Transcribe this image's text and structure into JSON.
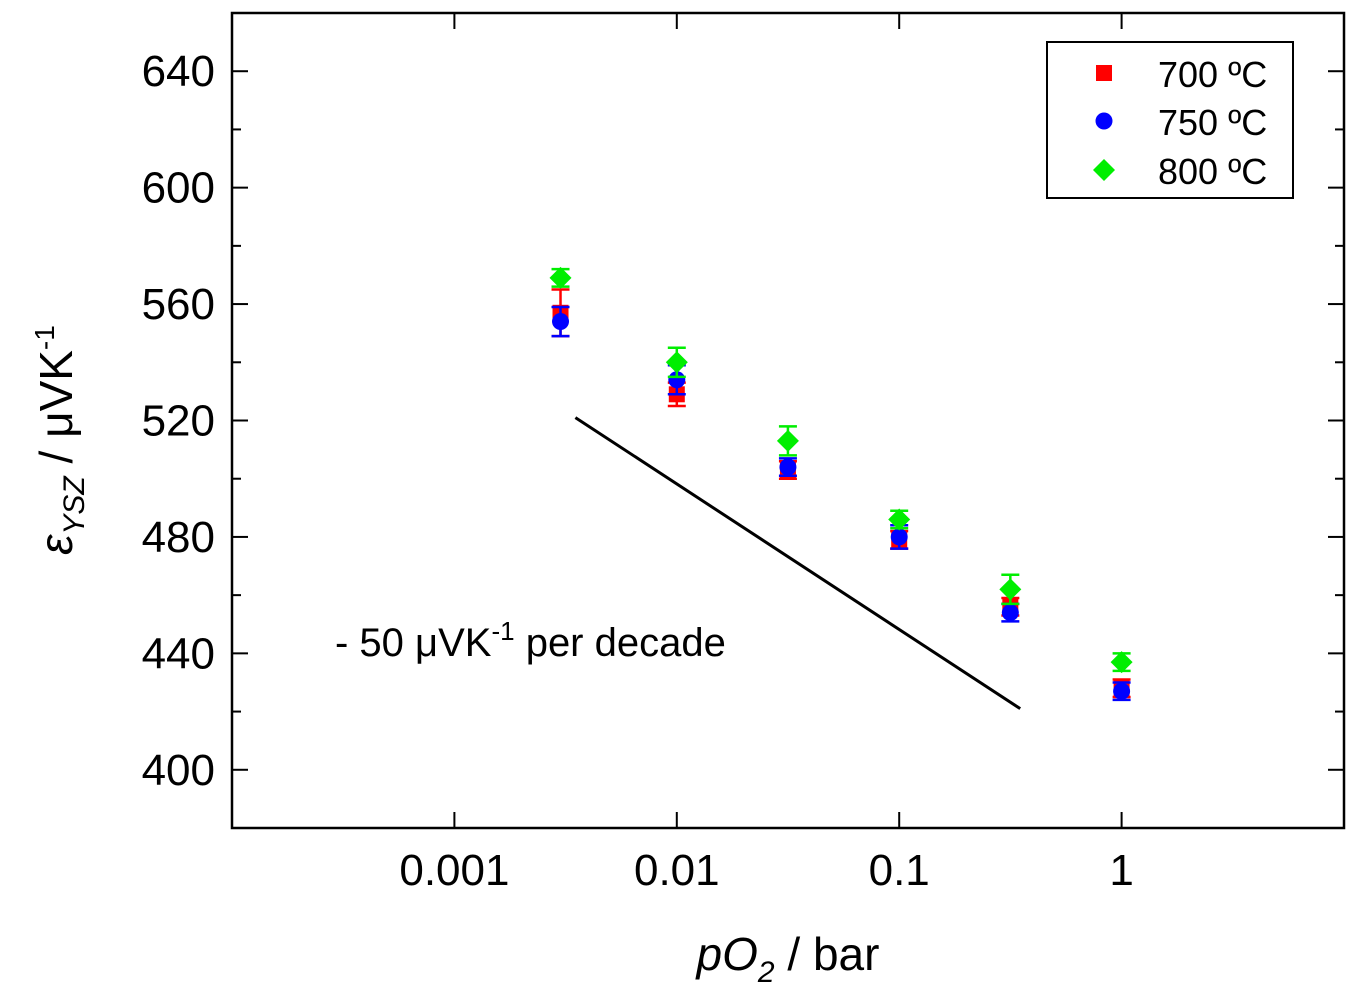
{
  "chart_data": {
    "type": "scatter",
    "title": "",
    "x_scale": "log",
    "xlim": [
      0.0001,
      10
    ],
    "ylim": [
      380,
      660
    ],
    "x_ticks": [
      {
        "value": 0.001,
        "label": "0.001"
      },
      {
        "value": 0.01,
        "label": "0.01"
      },
      {
        "value": 0.1,
        "label": "0.1"
      },
      {
        "value": 1,
        "label": "1"
      }
    ],
    "y_ticks": [
      {
        "value": 400,
        "label": "400"
      },
      {
        "value": 440,
        "label": "440"
      },
      {
        "value": 480,
        "label": "480"
      },
      {
        "value": 520,
        "label": "520"
      },
      {
        "value": 560,
        "label": "560"
      },
      {
        "value": 600,
        "label": "600"
      },
      {
        "value": 640,
        "label": "640"
      }
    ],
    "xlabel": {
      "main": "pO",
      "sub": "2",
      "rest": " / bar"
    },
    "ylabel": {
      "main": "ε",
      "sub": "YSZ",
      "rest": " / μVK",
      "sup": "-1"
    },
    "legend_position": "top-right",
    "series": [
      {
        "name": "700 ºC",
        "color": "#ff0000",
        "marker": "square",
        "x": [
          0.003,
          0.01,
          0.0316,
          0.1,
          0.316,
          1
        ],
        "y": [
          557,
          529,
          503,
          479,
          456,
          428
        ],
        "err": [
          8,
          4,
          3,
          3,
          3,
          3
        ]
      },
      {
        "name": "750 ºC",
        "color": "#0000ff",
        "marker": "circle",
        "x": [
          0.003,
          0.01,
          0.0316,
          0.1,
          0.316,
          1
        ],
        "y": [
          554,
          534,
          504,
          480,
          454,
          427
        ],
        "err": [
          5,
          5,
          3,
          4,
          3,
          3
        ]
      },
      {
        "name": "800 ºC",
        "color": "#00ee00",
        "marker": "diamond",
        "x": [
          0.003,
          0.01,
          0.0316,
          0.1,
          0.316,
          1
        ],
        "y": [
          569,
          540,
          513,
          486,
          462,
          437
        ],
        "err": [
          3,
          5,
          5,
          3,
          5,
          3
        ]
      }
    ],
    "reference_line": {
      "x": [
        0.0035,
        0.35
      ],
      "y": [
        521,
        421
      ]
    },
    "annotation": {
      "main": "- 50 μVK",
      "sup": "-1",
      "rest": " per decade"
    }
  }
}
